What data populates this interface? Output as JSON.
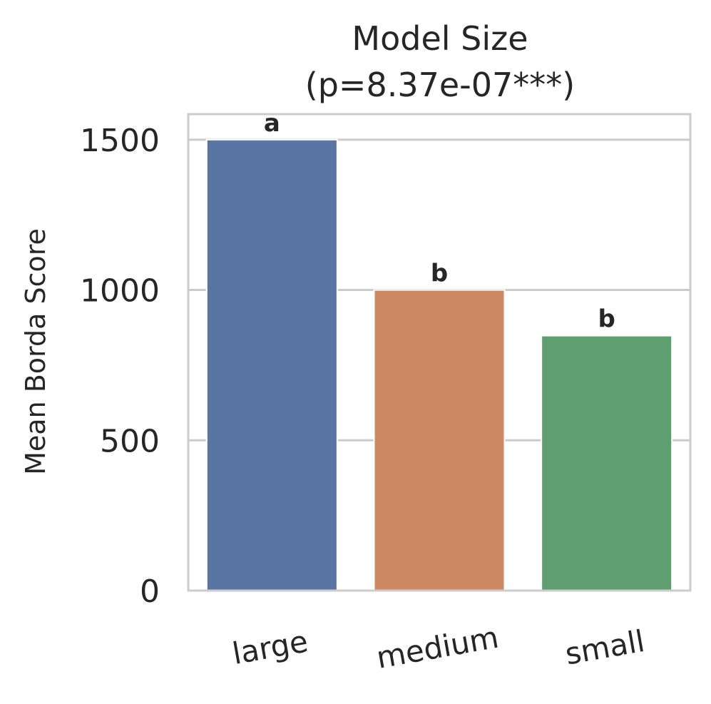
{
  "chart_data": {
    "type": "bar",
    "title": "Model Size",
    "subtitle": "(p=8.37e-07***)",
    "xlabel": "",
    "ylabel": "Mean Borda Score",
    "categories": [
      "large",
      "medium",
      "small"
    ],
    "values": [
      1500,
      1000,
      848
    ],
    "bar_labels": [
      "a",
      "b",
      "b"
    ],
    "colors": [
      "#5975a4",
      "#cc8963",
      "#5f9e6e"
    ],
    "ylim": [
      0,
      1585
    ],
    "yticks": [
      0,
      500,
      1000,
      1500
    ],
    "ytick_labels": [
      "0",
      "500",
      "1000",
      "1500"
    ],
    "grid": "horizontal",
    "grid_color": "#cccccc",
    "spine_color": "#cccccc",
    "x_tick_rotation_deg": 10
  }
}
